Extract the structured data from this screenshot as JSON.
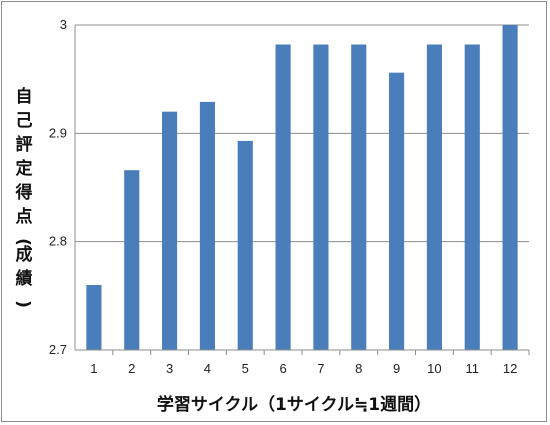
{
  "chart_data": {
    "type": "bar",
    "categories": [
      "1",
      "2",
      "3",
      "4",
      "5",
      "6",
      "7",
      "8",
      "9",
      "10",
      "11",
      "12"
    ],
    "values": [
      2.76,
      2.866,
      2.92,
      2.929,
      2.893,
      2.982,
      2.982,
      2.982,
      2.956,
      2.982,
      2.982,
      3.0
    ],
    "title": "",
    "xlabel": "学習サイクル（1サイクル≒1週間）",
    "ylabel_chars": [
      "自",
      "己",
      "評",
      "定",
      "得",
      "点",
      "(",
      "成",
      "績",
      ")"
    ],
    "ylim": [
      2.7,
      3.0
    ],
    "yticks": [
      "2.7",
      "2.8",
      "2.9",
      "3"
    ],
    "grid": true,
    "bar_color": "#4a7ebb",
    "grid_color": "#8c8c8c"
  }
}
